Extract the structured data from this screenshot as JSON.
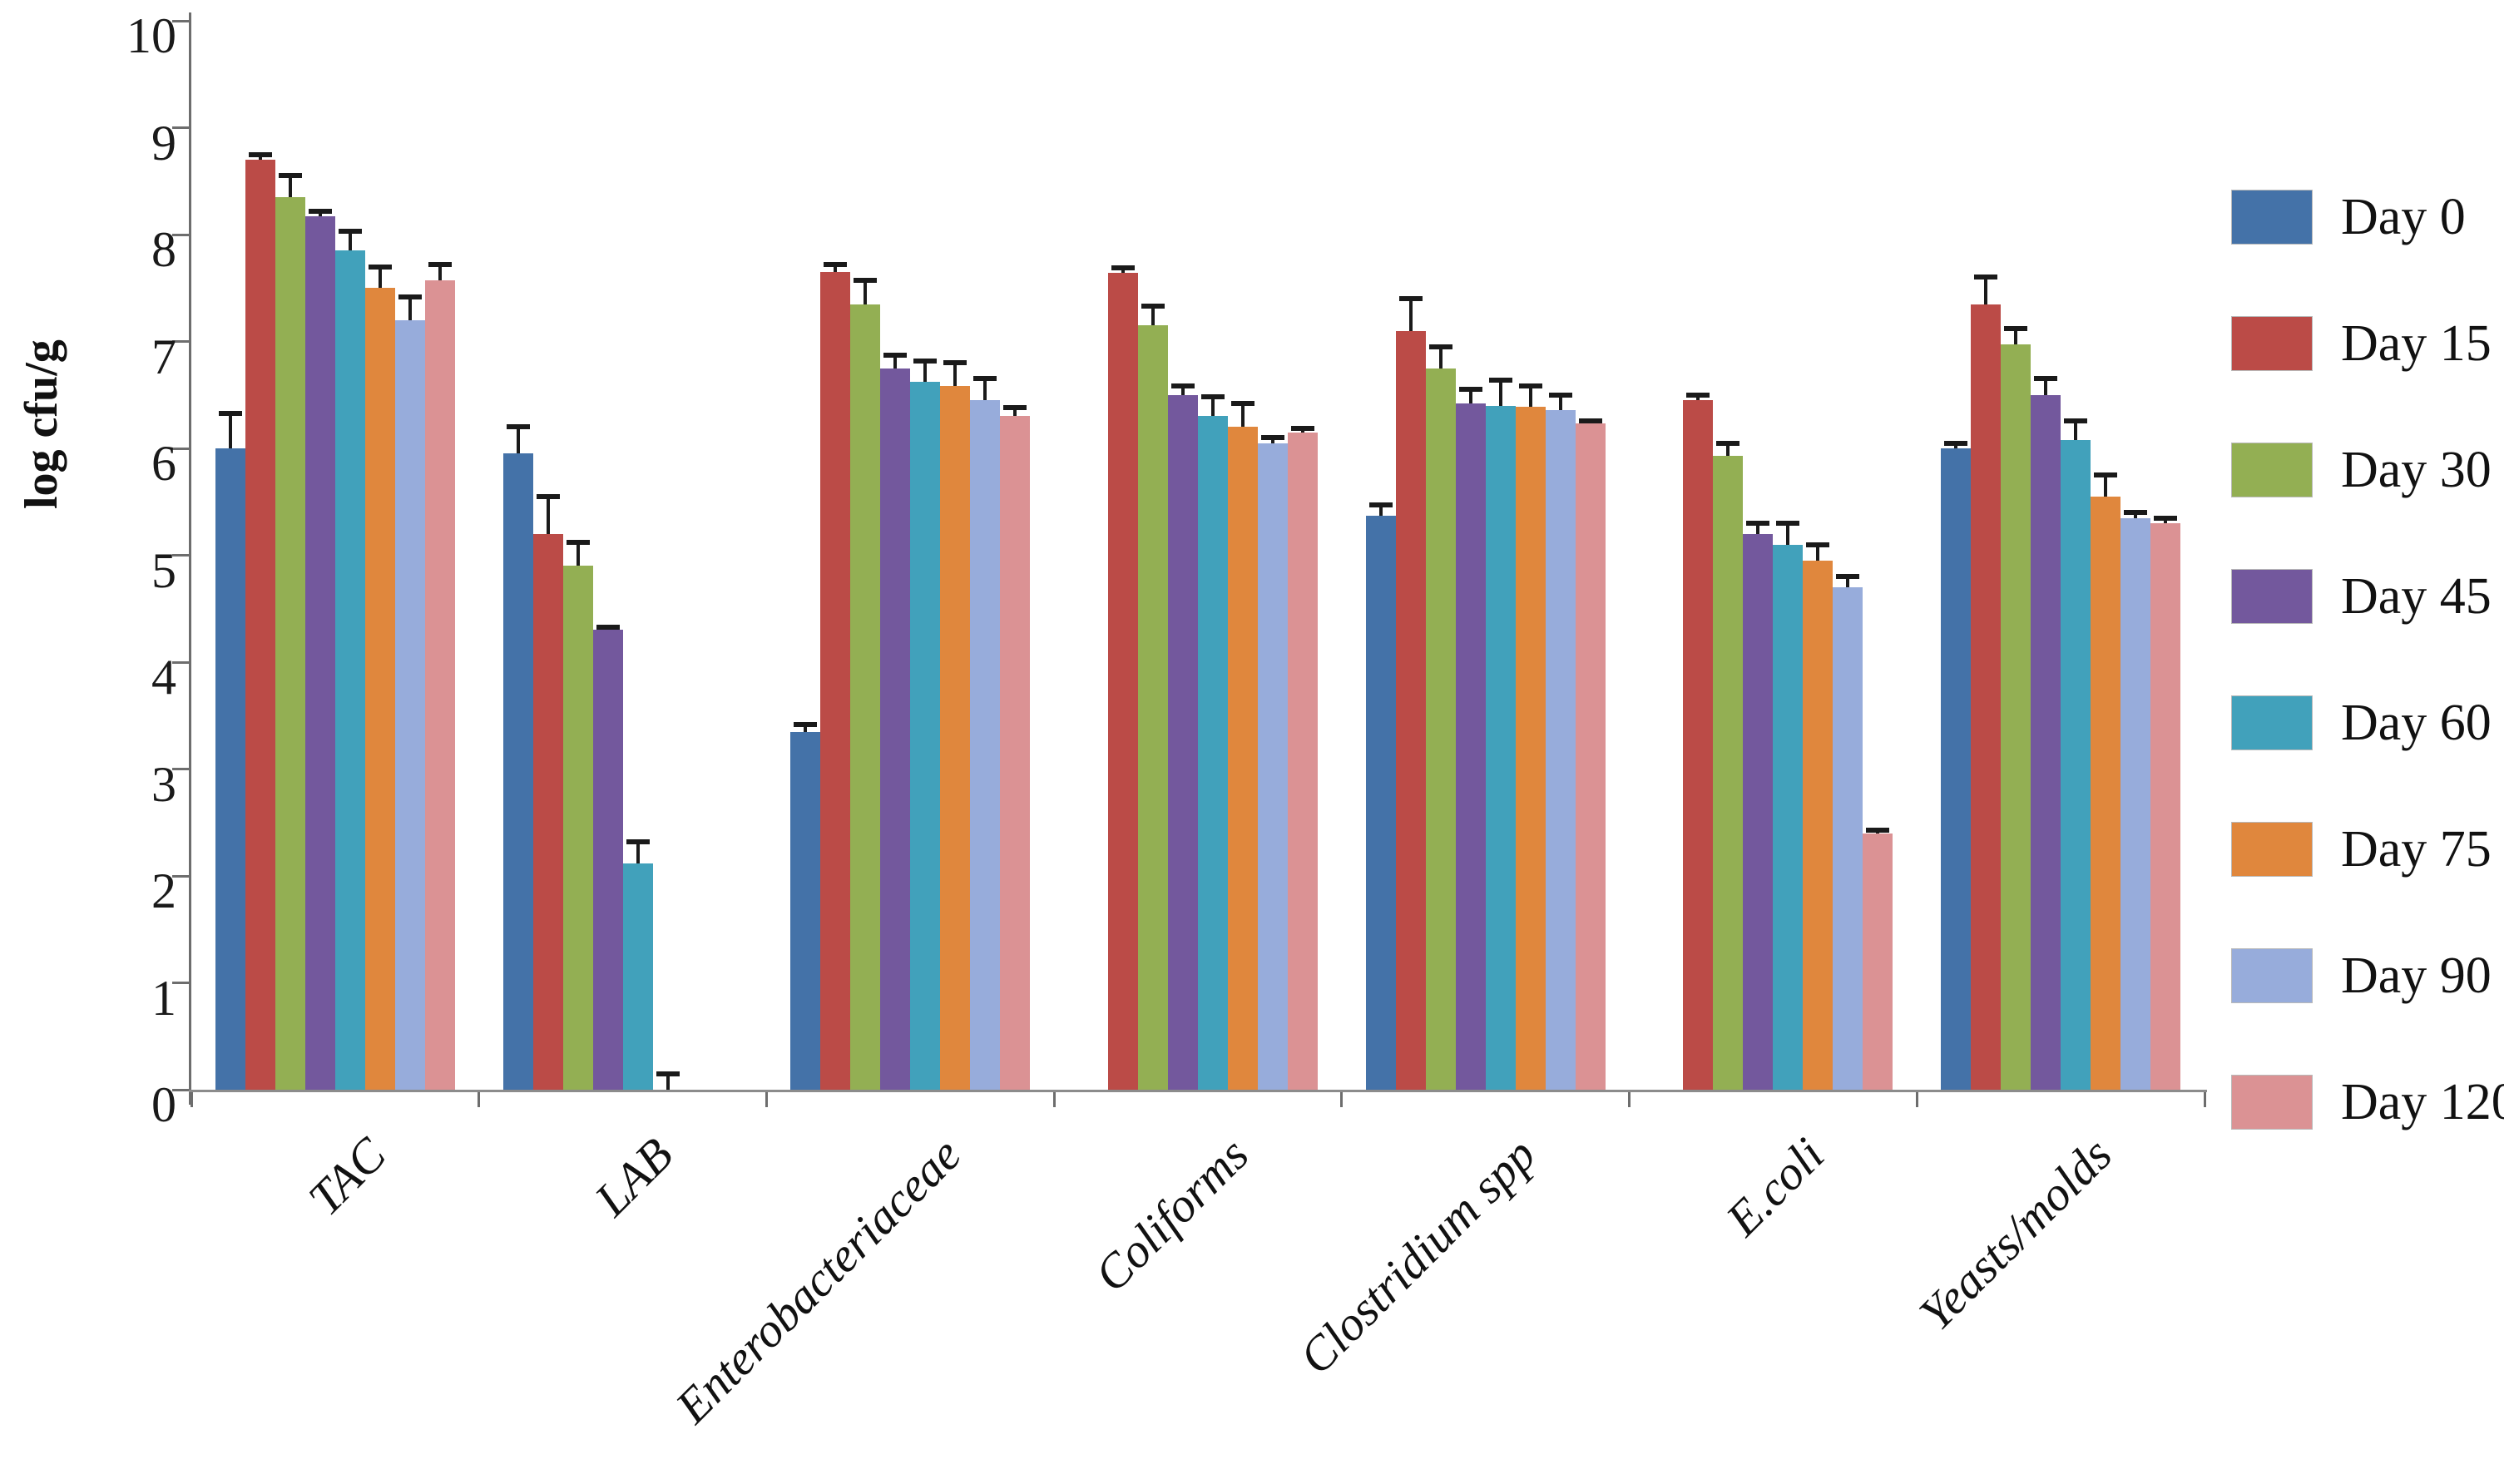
{
  "chart_data": {
    "type": "bar",
    "title": "",
    "xlabel": "",
    "ylabel": "log cfu/g",
    "ylim": [
      0,
      10
    ],
    "yticks": [
      0,
      1,
      2,
      3,
      4,
      5,
      6,
      7,
      8,
      9,
      10
    ],
    "grid": false,
    "legend_position": "right",
    "error_bars": "upper",
    "categories": [
      "TAC",
      "LAB",
      "Enterobacteriaceae",
      "Coliforms",
      "Clostridium spp",
      "E.coli",
      "Yeasts/molds"
    ],
    "series": [
      {
        "name": "Day 0",
        "color": "#4472A8",
        "values": [
          6.0,
          5.95,
          3.35,
          0,
          5.37,
          0,
          6.0
        ],
        "errors": [
          0.33,
          0.25,
          0.07,
          0,
          0.1,
          0,
          0.05
        ]
      },
      {
        "name": "Day 15",
        "color": "#BB4B47",
        "values": [
          8.7,
          5.2,
          7.65,
          7.64,
          7.1,
          6.45,
          7.35
        ],
        "errors": [
          0.05,
          0.35,
          0.07,
          0.05,
          0.3,
          0.05,
          0.25
        ]
      },
      {
        "name": "Day 30",
        "color": "#93AF53",
        "values": [
          8.35,
          4.9,
          7.35,
          7.15,
          6.75,
          5.93,
          6.97
        ],
        "errors": [
          0.2,
          0.22,
          0.22,
          0.18,
          0.2,
          0.12,
          0.15
        ]
      },
      {
        "name": "Day 45",
        "color": "#73589D",
        "values": [
          8.17,
          4.3,
          6.75,
          6.5,
          6.42,
          5.2,
          6.5
        ],
        "errors": [
          0.05,
          0.03,
          0.12,
          0.08,
          0.13,
          0.1,
          0.15
        ]
      },
      {
        "name": "Day 60",
        "color": "#41A1BB",
        "values": [
          7.85,
          2.12,
          6.62,
          6.3,
          6.4,
          5.1,
          6.08
        ],
        "errors": [
          0.18,
          0.2,
          0.2,
          0.18,
          0.24,
          0.2,
          0.18
        ]
      },
      {
        "name": "Day 75",
        "color": "#E0873D",
        "values": [
          7.5,
          0,
          6.58,
          6.2,
          6.39,
          4.95,
          5.55
        ],
        "errors": [
          0.2,
          0.15,
          0.22,
          0.22,
          0.19,
          0.15,
          0.2
        ]
      },
      {
        "name": "Day 90",
        "color": "#97ACDB",
        "values": [
          7.2,
          0,
          6.45,
          6.05,
          6.36,
          4.7,
          5.35
        ],
        "errors": [
          0.22,
          0,
          0.2,
          0.05,
          0.14,
          0.1,
          0.05
        ]
      },
      {
        "name": "Day 120",
        "color": "#DB9294",
        "values": [
          7.57,
          0,
          6.3,
          6.15,
          6.23,
          2.4,
          5.3
        ],
        "errors": [
          0.15,
          0,
          0.08,
          0.04,
          0.03,
          0.03,
          0.05
        ]
      }
    ]
  }
}
